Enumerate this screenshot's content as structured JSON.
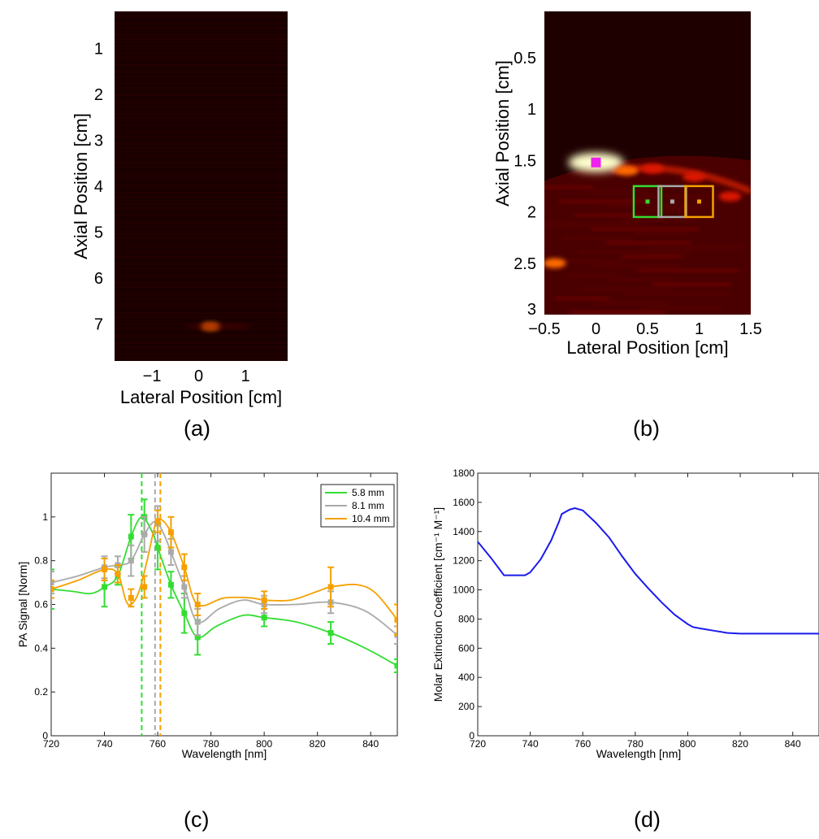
{
  "panel_labels": {
    "a": "(a)",
    "b": "(b)",
    "c": "(c)",
    "d": "(d)"
  },
  "chart_data": [
    {
      "panel": "(a)",
      "type": "heatmap",
      "xlabel": "Lateral Position [cm]",
      "ylabel": "Axial Position [cm]",
      "xlim": [
        -1.8,
        1.9
      ],
      "ylim": [
        0.2,
        7.8
      ],
      "y_reversed": true,
      "xticks": [
        -1,
        0,
        1
      ],
      "xtick_labels": [
        "−1",
        "0",
        "1"
      ],
      "yticks": [
        1,
        2,
        3,
        4,
        5,
        6,
        7
      ],
      "ytick_labels": [
        "1",
        "2",
        "3",
        "4",
        "5",
        "6",
        "7"
      ],
      "colormap": "hot",
      "hotspots": [
        {
          "x": 0.25,
          "y": 7.05,
          "intensity": 0.55
        }
      ]
    },
    {
      "panel": "(b)",
      "type": "heatmap",
      "xlabel": "Lateral Position [cm]",
      "ylabel": "Axial Position [cm]",
      "xlim": [
        -0.5,
        1.5
      ],
      "ylim": [
        0.05,
        3.0
      ],
      "y_reversed": true,
      "xticks": [
        -0.5,
        0,
        0.5,
        1,
        1.5
      ],
      "xtick_labels": [
        "−0.5",
        "0",
        "0.5",
        "1",
        "1.5"
      ],
      "yticks": [
        0.5,
        1,
        1.5,
        2,
        2.5,
        3
      ],
      "ytick_labels": [
        "0.5",
        "1",
        "1.5",
        "2",
        "2.5",
        "3"
      ],
      "colormap": "hot",
      "hotspots": [
        {
          "x": 0.0,
          "y": 1.52,
          "intensity": 1.0
        },
        {
          "x": 0.3,
          "y": 1.6,
          "intensity": 0.6
        },
        {
          "x": 0.55,
          "y": 1.58,
          "intensity": 0.5
        },
        {
          "x": 0.95,
          "y": 1.66,
          "intensity": 0.45
        },
        {
          "x": 1.3,
          "y": 1.85,
          "intensity": 0.45
        },
        {
          "x": -0.4,
          "y": 2.5,
          "intensity": 0.55
        }
      ],
      "regions": [
        {
          "name": "5.8 mm",
          "color": "#33dd33",
          "x_center": 0.5,
          "y_center": 1.9
        },
        {
          "name": "8.1 mm",
          "color": "#aaaaaa",
          "x_center": 0.74,
          "y_center": 1.9
        },
        {
          "name": "10.4 mm",
          "color": "#f5a000",
          "x_center": 1.0,
          "y_center": 1.9
        }
      ],
      "marker": {
        "x": 0.0,
        "y": 1.52,
        "color": "#ee22ee"
      }
    },
    {
      "panel": "(c)",
      "type": "line",
      "xlabel": "Wavelength [nm]",
      "ylabel": "PA Signal [Norm]",
      "xlim": [
        720,
        850
      ],
      "ylim": [
        0,
        1.2
      ],
      "xticks": [
        720,
        740,
        760,
        780,
        800,
        820,
        840
      ],
      "yticks": [
        0,
        0.2,
        0.4,
        0.6,
        0.8,
        1
      ],
      "ytick_labels": [
        "0",
        "0.2",
        "0.4",
        "0.6",
        "0.8",
        "1"
      ],
      "legend_position": "top-right",
      "series": [
        {
          "name": "5.8 mm",
          "color": "#33dd33",
          "peak_wavelength": 754,
          "points": [
            {
              "x": 720,
              "y": 0.67,
              "err": 0.09
            },
            {
              "x": 740,
              "y": 0.68,
              "err": 0.09
            },
            {
              "x": 745,
              "y": 0.73,
              "err": 0.04
            },
            {
              "x": 750,
              "y": 0.91,
              "err": 0.1
            },
            {
              "x": 755,
              "y": 1.0,
              "err": 0.08
            },
            {
              "x": 760,
              "y": 0.86,
              "err": 0.1
            },
            {
              "x": 765,
              "y": 0.69,
              "err": 0.06
            },
            {
              "x": 770,
              "y": 0.56,
              "err": 0.09
            },
            {
              "x": 775,
              "y": 0.45,
              "err": 0.08
            },
            {
              "x": 800,
              "y": 0.54,
              "err": 0.04
            },
            {
              "x": 825,
              "y": 0.47,
              "err": 0.05
            },
            {
              "x": 850,
              "y": 0.32,
              "err": 0.03
            }
          ],
          "curve": [
            [
              720,
              0.67
            ],
            [
              728,
              0.66
            ],
            [
              735,
              0.65
            ],
            [
              740,
              0.68
            ],
            [
              745,
              0.73
            ],
            [
              750,
              0.91
            ],
            [
              754,
              1.0
            ],
            [
              758,
              0.93
            ],
            [
              760,
              0.86
            ],
            [
              765,
              0.69
            ],
            [
              770,
              0.56
            ],
            [
              775,
              0.45
            ],
            [
              782,
              0.5
            ],
            [
              792,
              0.55
            ],
            [
              800,
              0.54
            ],
            [
              812,
              0.52
            ],
            [
              825,
              0.47
            ],
            [
              838,
              0.4
            ],
            [
              850,
              0.32
            ]
          ]
        },
        {
          "name": "8.1 mm",
          "color": "#aaaaaa",
          "peak_wavelength": 759,
          "points": [
            {
              "x": 720,
              "y": 0.7,
              "err": 0.05
            },
            {
              "x": 740,
              "y": 0.77,
              "err": 0.05
            },
            {
              "x": 745,
              "y": 0.78,
              "err": 0.04
            },
            {
              "x": 750,
              "y": 0.8,
              "err": 0.07
            },
            {
              "x": 755,
              "y": 0.92,
              "err": 0.08
            },
            {
              "x": 760,
              "y": 0.97,
              "err": 0.08
            },
            {
              "x": 765,
              "y": 0.84,
              "err": 0.06
            },
            {
              "x": 770,
              "y": 0.68,
              "err": 0.05
            },
            {
              "x": 775,
              "y": 0.52,
              "err": 0.06
            },
            {
              "x": 800,
              "y": 0.6,
              "err": 0.04
            },
            {
              "x": 825,
              "y": 0.61,
              "err": 0.05
            },
            {
              "x": 850,
              "y": 0.46,
              "err": 0.04
            }
          ],
          "curve": [
            [
              720,
              0.7
            ],
            [
              730,
              0.73
            ],
            [
              740,
              0.77
            ],
            [
              745,
              0.78
            ],
            [
              750,
              0.8
            ],
            [
              755,
              0.92
            ],
            [
              759,
              0.98
            ],
            [
              762,
              0.93
            ],
            [
              765,
              0.84
            ],
            [
              770,
              0.68
            ],
            [
              775,
              0.52
            ],
            [
              783,
              0.58
            ],
            [
              792,
              0.62
            ],
            [
              800,
              0.6
            ],
            [
              812,
              0.6
            ],
            [
              825,
              0.61
            ],
            [
              838,
              0.57
            ],
            [
              850,
              0.46
            ]
          ]
        },
        {
          "name": "10.4 mm",
          "color": "#f5a000",
          "peak_wavelength": 761,
          "points": [
            {
              "x": 720,
              "y": 0.67,
              "err": 0.04
            },
            {
              "x": 740,
              "y": 0.76,
              "err": 0.05
            },
            {
              "x": 745,
              "y": 0.74,
              "err": 0.04
            },
            {
              "x": 750,
              "y": 0.63,
              "err": 0.04
            },
            {
              "x": 755,
              "y": 0.68,
              "err": 0.05
            },
            {
              "x": 760,
              "y": 0.98,
              "err": 0.05
            },
            {
              "x": 765,
              "y": 0.93,
              "err": 0.07
            },
            {
              "x": 770,
              "y": 0.77,
              "err": 0.06
            },
            {
              "x": 775,
              "y": 0.6,
              "err": 0.05
            },
            {
              "x": 800,
              "y": 0.62,
              "err": 0.04
            },
            {
              "x": 825,
              "y": 0.68,
              "err": 0.09
            },
            {
              "x": 850,
              "y": 0.53,
              "err": 0.07
            }
          ],
          "curve": [
            [
              720,
              0.67
            ],
            [
              730,
              0.71
            ],
            [
              740,
              0.76
            ],
            [
              745,
              0.74
            ],
            [
              748,
              0.62
            ],
            [
              750,
              0.6
            ],
            [
              753,
              0.66
            ],
            [
              756,
              0.8
            ],
            [
              759,
              0.96
            ],
            [
              761,
              0.99
            ],
            [
              765,
              0.93
            ],
            [
              770,
              0.77
            ],
            [
              775,
              0.6
            ],
            [
              785,
              0.63
            ],
            [
              795,
              0.63
            ],
            [
              800,
              0.62
            ],
            [
              810,
              0.62
            ],
            [
              820,
              0.66
            ],
            [
              825,
              0.68
            ],
            [
              835,
              0.69
            ],
            [
              842,
              0.65
            ],
            [
              850,
              0.53
            ]
          ]
        }
      ]
    },
    {
      "panel": "(d)",
      "type": "line",
      "xlabel": "Wavelength [nm]",
      "ylabel": "Molar Extinction Coefficient [cm⁻¹ M⁻¹]",
      "xlim": [
        720,
        850
      ],
      "ylim": [
        0,
        1800
      ],
      "xticks": [
        720,
        740,
        760,
        780,
        800,
        820,
        840
      ],
      "yticks": [
        0,
        200,
        400,
        600,
        800,
        1000,
        1200,
        1400,
        1600,
        1800
      ],
      "series": [
        {
          "name": "",
          "color": "#1a1aee",
          "curve": [
            [
              720,
              1330
            ],
            [
              725,
              1220
            ],
            [
              730,
              1100
            ],
            [
              735,
              1100
            ],
            [
              738,
              1100
            ],
            [
              740,
              1120
            ],
            [
              744,
              1210
            ],
            [
              748,
              1340
            ],
            [
              751,
              1470
            ],
            [
              752,
              1520
            ],
            [
              755,
              1550
            ],
            [
              757,
              1560
            ],
            [
              760,
              1545
            ],
            [
              765,
              1460
            ],
            [
              770,
              1360
            ],
            [
              775,
              1230
            ],
            [
              780,
              1110
            ],
            [
              785,
              1010
            ],
            [
              790,
              915
            ],
            [
              795,
              830
            ],
            [
              800,
              765
            ],
            [
              802,
              745
            ],
            [
              805,
              735
            ],
            [
              810,
              720
            ],
            [
              815,
              705
            ],
            [
              820,
              700
            ],
            [
              830,
              700
            ],
            [
              840,
              700
            ],
            [
              850,
              700
            ]
          ]
        }
      ]
    }
  ]
}
